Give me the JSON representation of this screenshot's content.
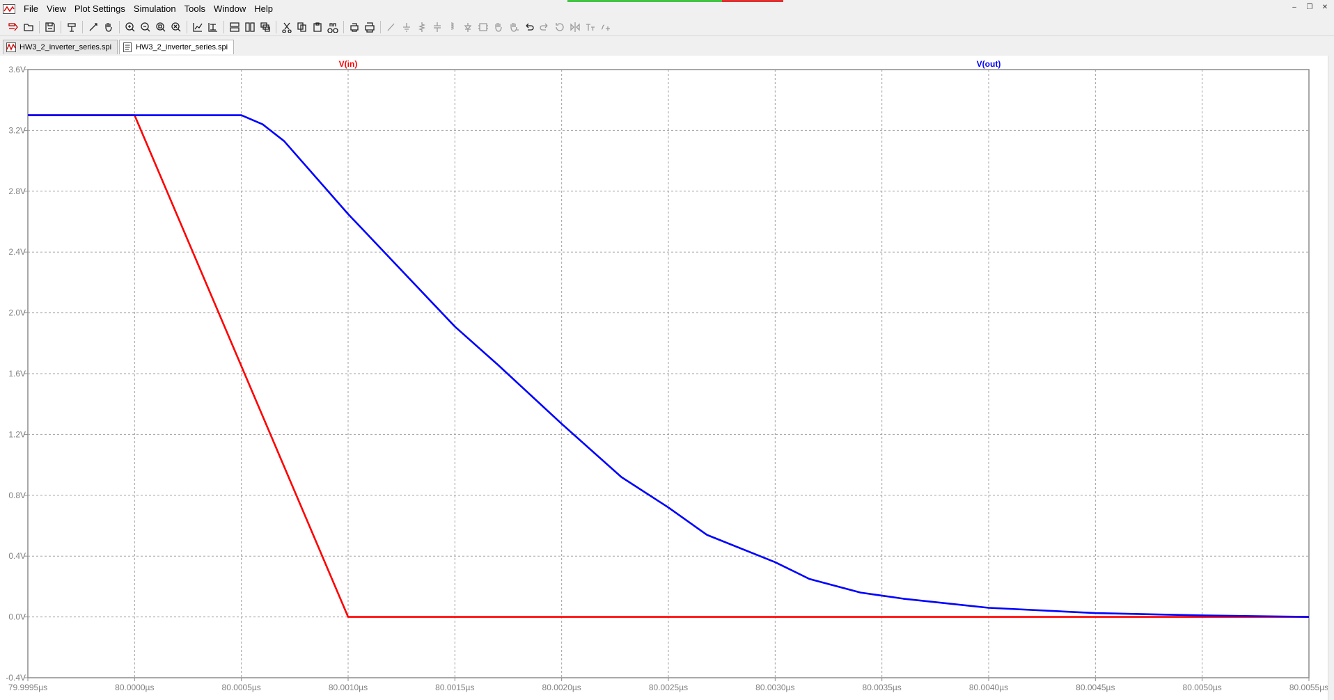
{
  "menu": {
    "items": [
      "File",
      "View",
      "Plot Settings",
      "Simulation",
      "Tools",
      "Window",
      "Help"
    ]
  },
  "toolbar": {
    "buttons": [
      "run-icon",
      "open-icon",
      "save-icon",
      "control-panel-icon",
      "pick-icon",
      "pan-icon",
      "zoom-in-icon",
      "zoom-out-icon",
      "zoom-full-icon",
      "zoom-cancel-icon",
      "autorange-icon",
      "autorange-y-icon",
      "tile-horizontal-icon",
      "tile-vertical-icon",
      "cascade-icon",
      "cut-icon",
      "copy-icon",
      "paste-icon",
      "find-icon",
      "print-preview-icon",
      "print-icon",
      "wire-icon",
      "ground-icon",
      "resistor-icon",
      "capacitor-icon",
      "inductor-icon",
      "diode-icon",
      "component-icon",
      "move-icon",
      "drag-icon",
      "undo-icon",
      "redo-icon",
      "rotate-icon",
      "mirror-icon",
      "text-icon",
      "spice-directive-icon"
    ]
  },
  "tabs": [
    {
      "label": "HW3_2_inverter_series.spi",
      "active": false,
      "icon": "waveform-icon"
    },
    {
      "label": "HW3_2_inverter_series.spi",
      "active": true,
      "icon": "netlist-icon"
    }
  ],
  "colors": {
    "vin": "#ff0000",
    "vout": "#0000ff",
    "grid": "#a0a0a0",
    "axis_label": "#808080"
  },
  "chart_data": {
    "type": "line",
    "xlabel": "",
    "ylabel": "",
    "x_unit": "µs",
    "y_unit": "V",
    "xlim": [
      79.9995,
      80.0055
    ],
    "ylim": [
      -0.4,
      3.6
    ],
    "x_ticks": [
      "79.9995µs",
      "80.0000µs",
      "80.0005µs",
      "80.0010µs",
      "80.0015µs",
      "80.0020µs",
      "80.0025µs",
      "80.0030µs",
      "80.0035µs",
      "80.0040µs",
      "80.0045µs",
      "80.0050µs",
      "80.0055µs"
    ],
    "y_ticks": [
      "3.6V",
      "3.2V",
      "2.8V",
      "2.4V",
      "2.0V",
      "1.6V",
      "1.2V",
      "0.8V",
      "0.4V",
      "0.0V",
      "-0.4V"
    ],
    "grid": true,
    "legend": "top",
    "series": [
      {
        "name": "V(in)",
        "color": "#ff0000",
        "x": [
          79.9995,
          80.0,
          80.001,
          80.0055
        ],
        "y": [
          3.3,
          3.3,
          0.0,
          0.0
        ]
      },
      {
        "name": "V(out)",
        "color": "#0000ff",
        "x": [
          79.9995,
          80.0,
          80.0005,
          80.0006,
          80.0007,
          80.001,
          80.0015,
          80.0017,
          80.002,
          80.00228,
          80.0025,
          80.00268,
          80.003,
          80.00316,
          80.0034,
          80.0036,
          80.004,
          80.0045,
          80.005,
          80.0055
        ],
        "y": [
          3.3,
          3.3,
          3.3,
          3.24,
          3.13,
          2.65,
          1.91,
          1.66,
          1.27,
          0.92,
          0.72,
          0.54,
          0.36,
          0.25,
          0.16,
          0.12,
          0.06,
          0.025,
          0.01,
          0.0
        ]
      }
    ]
  }
}
